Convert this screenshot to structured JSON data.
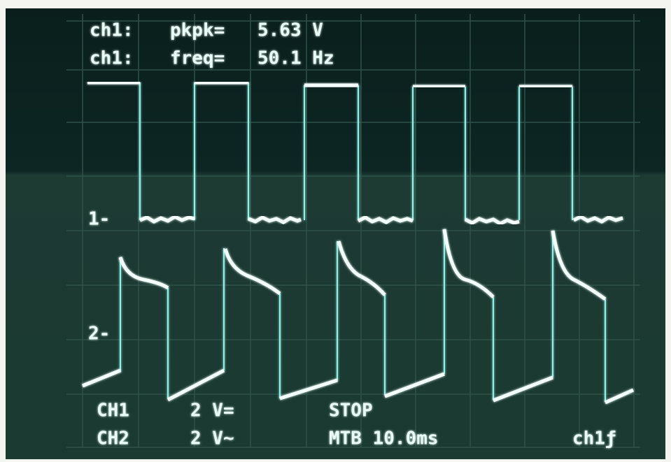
{
  "readout": {
    "rows": [
      [
        "ch1:",
        "pkpk=",
        "5.63 V"
      ],
      [
        "ch1:",
        "freq=",
        "50.1 Hz"
      ]
    ]
  },
  "markers": [
    "1-",
    "2-"
  ],
  "settings": {
    "rows": [
      [
        "CH1",
        "2 V="
      ],
      [
        "CH2",
        "2 V~"
      ]
    ]
  },
  "status": "STOP",
  "timebase": "MTB 10.0ms",
  "trigger": "ch1ƒ"
}
